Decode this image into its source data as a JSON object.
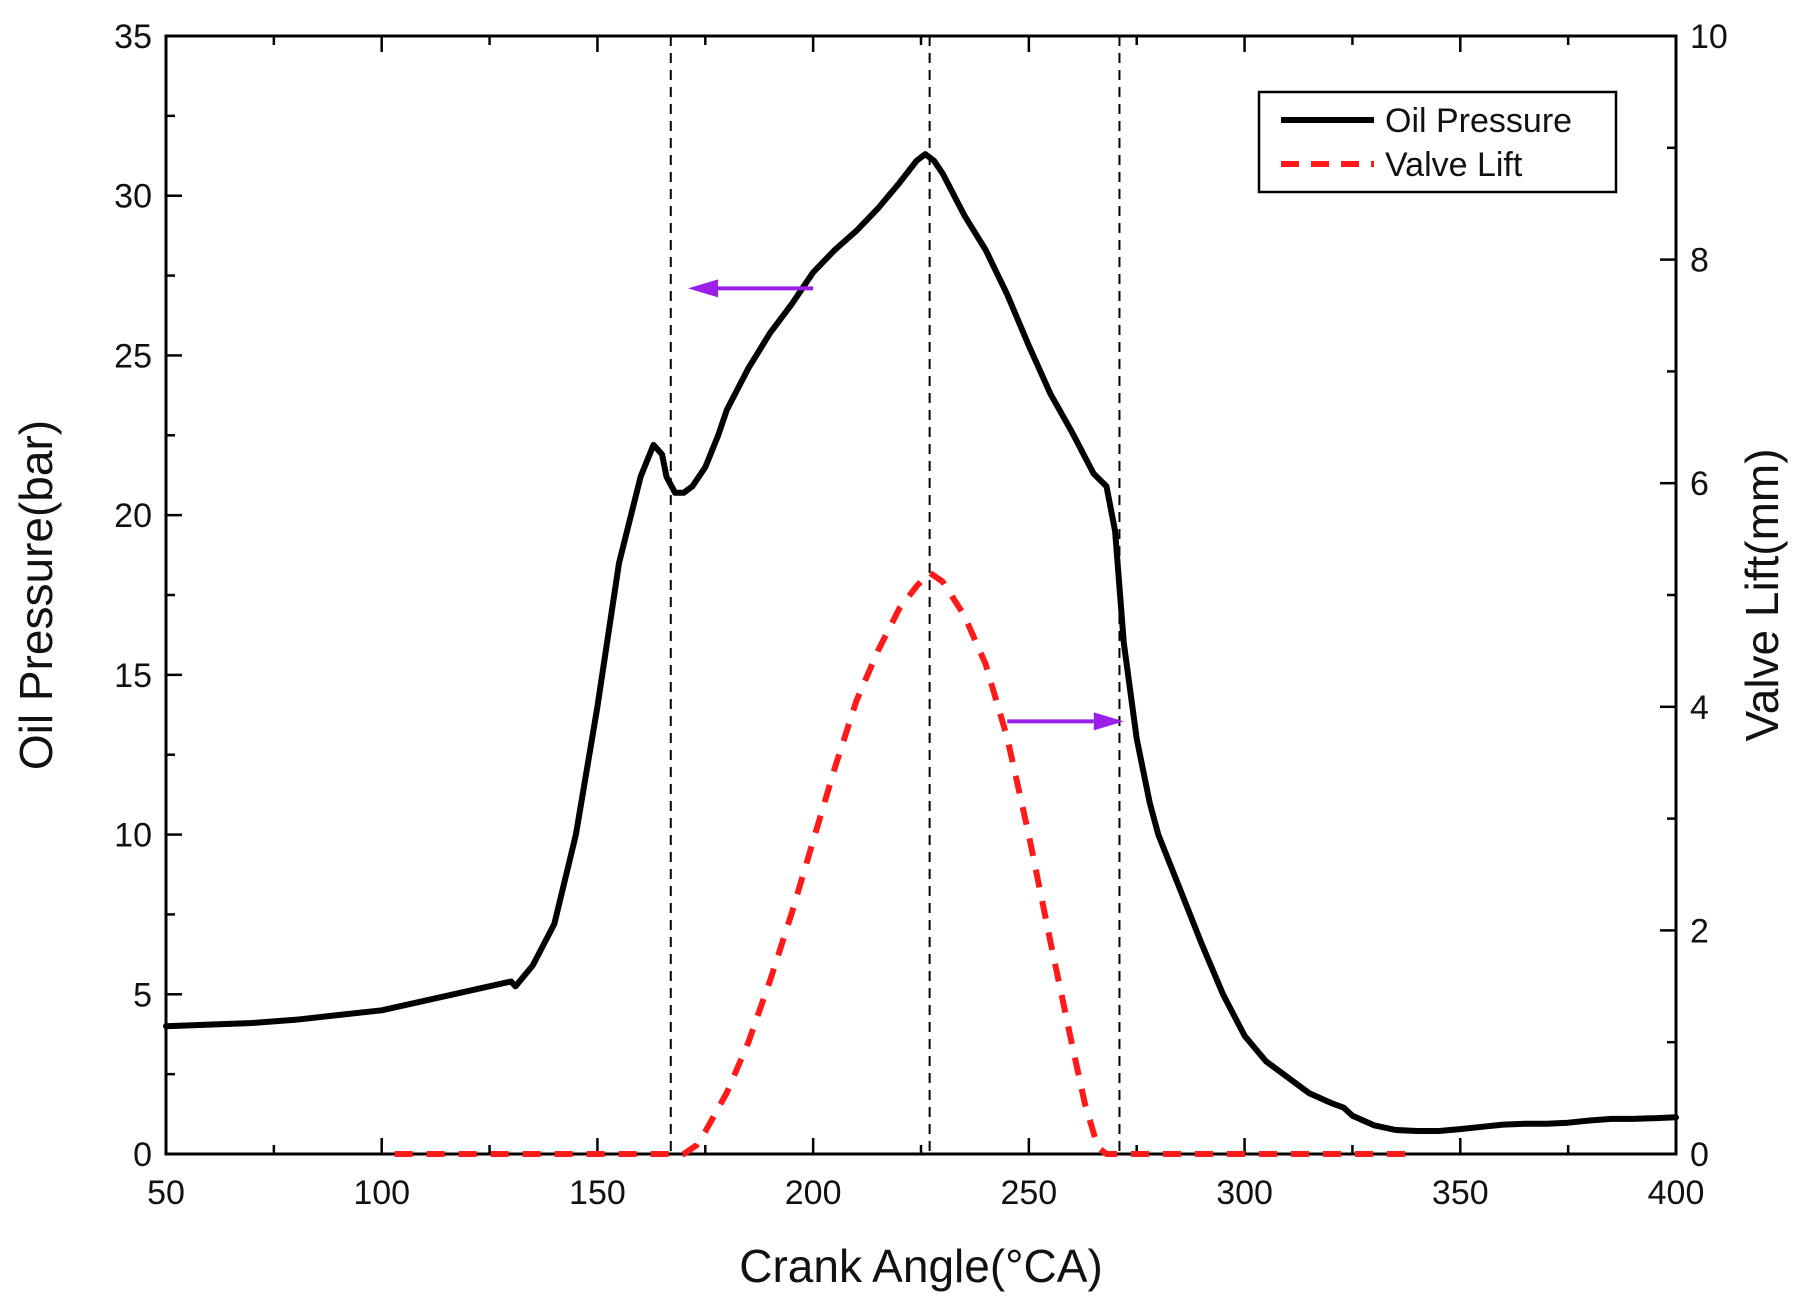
{
  "chart_data": {
    "type": "line",
    "title": "",
    "xlabel": "Crank Angle(°CA)",
    "ylabel_left": "Oil Pressure(bar)",
    "ylabel_right": "Valve Lift(mm)",
    "xlim": [
      50,
      400
    ],
    "ylim_left": [
      0,
      35
    ],
    "ylim_right": [
      0,
      10
    ],
    "x_ticks": [
      50,
      100,
      150,
      200,
      250,
      300,
      350,
      400
    ],
    "y_left_ticks": [
      0,
      5,
      10,
      15,
      20,
      25,
      30,
      35
    ],
    "y_right_ticks": [
      0,
      2,
      4,
      6,
      8,
      10
    ],
    "legend": {
      "position": "top-right",
      "entries": [
        "Oil Pressure",
        "Valve Lift"
      ]
    },
    "reference_lines_x": [
      167,
      227,
      271
    ],
    "annotations": [
      {
        "type": "arrow",
        "direction": "left",
        "from": [
          200,
          27.1
        ],
        "to": [
          171,
          27.1
        ],
        "axis": "left",
        "meaning": "Oil Pressure uses left axis"
      },
      {
        "type": "arrow",
        "direction": "right",
        "from": [
          245,
          3.87
        ],
        "to": [
          272,
          3.87
        ],
        "axis": "right",
        "meaning": "Valve Lift uses right axis"
      }
    ],
    "colors": {
      "oil_pressure": "#000000",
      "valve_lift": "#ff1a1a",
      "arrow": "#9b1fe8",
      "reference": "#000000"
    },
    "series": [
      {
        "name": "Oil Pressure",
        "axis": "left",
        "style": "solid",
        "x": [
          50,
          60,
          70,
          80,
          90,
          100,
          110,
          120,
          130,
          131,
          135,
          140,
          145,
          150,
          155,
          160,
          163,
          165,
          166,
          168,
          170,
          172,
          175,
          178,
          180,
          185,
          190,
          195,
          200,
          205,
          210,
          215,
          220,
          224,
          226,
          228,
          230,
          235,
          240,
          245,
          250,
          255,
          260,
          265,
          268,
          270,
          272,
          275,
          278,
          280,
          285,
          290,
          295,
          300,
          305,
          310,
          315,
          320,
          323,
          325,
          330,
          335,
          340,
          345,
          350,
          355,
          360,
          365,
          370,
          375,
          380,
          385,
          390,
          395,
          400
        ],
        "y": [
          4.0,
          4.05,
          4.1,
          4.2,
          4.35,
          4.5,
          4.8,
          5.1,
          5.4,
          5.25,
          5.9,
          7.2,
          10.0,
          14.0,
          18.5,
          21.2,
          22.2,
          21.9,
          21.2,
          20.7,
          20.7,
          20.9,
          21.5,
          22.5,
          23.3,
          24.6,
          25.7,
          26.6,
          27.6,
          28.3,
          28.9,
          29.6,
          30.4,
          31.1,
          31.3,
          31.1,
          30.7,
          29.4,
          28.3,
          26.9,
          25.3,
          23.8,
          22.6,
          21.3,
          20.9,
          19.5,
          16.0,
          13.0,
          11.0,
          10.0,
          8.3,
          6.6,
          5.0,
          3.7,
          2.9,
          2.4,
          1.9,
          1.6,
          1.45,
          1.2,
          0.9,
          0.75,
          0.72,
          0.72,
          0.78,
          0.85,
          0.92,
          0.95,
          0.95,
          0.98,
          1.05,
          1.1,
          1.1,
          1.12,
          1.15
        ]
      },
      {
        "name": "Valve Lift",
        "axis": "right",
        "style": "dashed",
        "x": [
          103,
          120,
          140,
          160,
          170,
          173,
          175,
          180,
          185,
          190,
          195,
          200,
          205,
          210,
          215,
          220,
          224,
          227,
          230,
          235,
          240,
          245,
          250,
          255,
          260,
          263,
          266,
          268,
          280,
          300,
          320,
          338
        ],
        "y": [
          0,
          0,
          0,
          0,
          0,
          0.08,
          0.2,
          0.55,
          1.0,
          1.55,
          2.15,
          2.8,
          3.45,
          4.05,
          4.5,
          4.88,
          5.08,
          5.2,
          5.12,
          4.82,
          4.38,
          3.72,
          2.85,
          1.9,
          0.98,
          0.45,
          0.06,
          0,
          0,
          0,
          0,
          0
        ]
      }
    ]
  }
}
